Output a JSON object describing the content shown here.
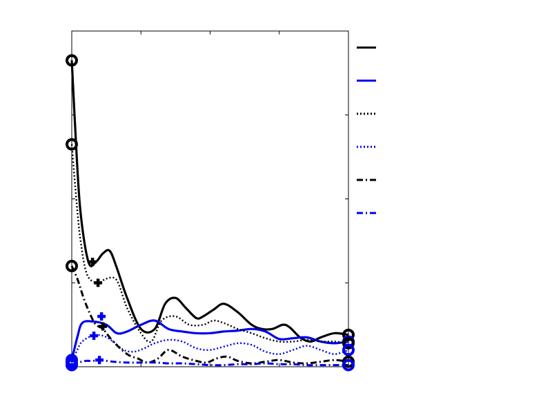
{
  "chart_data": {
    "type": "line",
    "title": "",
    "xlabel": "",
    "ylabel": "",
    "xlim": [
      0,
      40
    ],
    "ylim": [
      0,
      4
    ],
    "x_ticks": [
      0,
      10,
      20,
      30,
      40
    ],
    "y_ticks": [
      0,
      1,
      2,
      3,
      4
    ],
    "tick_labels_visible": false,
    "grid": false,
    "legend": {
      "placement": "outside-right",
      "labels_visible": false
    },
    "series": [
      {
        "color": "#000000",
        "style": "solid",
        "width": 3.2,
        "points": [
          [
            0,
            3.65
          ],
          [
            0.4,
            3.0
          ],
          [
            1.2,
            1.9
          ],
          [
            2.4,
            1.25
          ],
          [
            3.5,
            1.25
          ],
          [
            4.5,
            1.35
          ],
          [
            5.5,
            1.38
          ],
          [
            6.5,
            1.18
          ],
          [
            8,
            0.82
          ],
          [
            10,
            0.45
          ],
          [
            12,
            0.45
          ],
          [
            13.5,
            0.75
          ],
          [
            15,
            0.82
          ],
          [
            16.5,
            0.7
          ],
          [
            18,
            0.58
          ],
          [
            19,
            0.6
          ],
          [
            20.5,
            0.68
          ],
          [
            22,
            0.75
          ],
          [
            24,
            0.65
          ],
          [
            26,
            0.5
          ],
          [
            27.5,
            0.45
          ],
          [
            29,
            0.45
          ],
          [
            30.5,
            0.5
          ],
          [
            31.5,
            0.47
          ],
          [
            33,
            0.35
          ],
          [
            34.5,
            0.3
          ],
          [
            36,
            0.35
          ],
          [
            38,
            0.4
          ],
          [
            40,
            0.38
          ]
        ],
        "start_marker": "o",
        "end_marker": "o",
        "extra_markers": [
          {
            "x": 3,
            "y": 1.25,
            "m": "+"
          }
        ]
      },
      {
        "color": "#0000ee",
        "style": "solid",
        "width": 3.2,
        "points": [
          [
            0,
            0.08
          ],
          [
            0.8,
            0.35
          ],
          [
            1.5,
            0.52
          ],
          [
            3,
            0.54
          ],
          [
            5,
            0.5
          ],
          [
            6.5,
            0.4
          ],
          [
            8,
            0.42
          ],
          [
            10,
            0.5
          ],
          [
            12,
            0.55
          ],
          [
            14,
            0.45
          ],
          [
            16,
            0.42
          ],
          [
            18,
            0.4
          ],
          [
            20,
            0.4
          ],
          [
            22,
            0.42
          ],
          [
            24,
            0.43
          ],
          [
            26,
            0.45
          ],
          [
            28,
            0.42
          ],
          [
            30,
            0.33
          ],
          [
            32,
            0.34
          ],
          [
            34,
            0.35
          ],
          [
            36,
            0.3
          ],
          [
            38,
            0.28
          ],
          [
            40,
            0.3
          ]
        ],
        "start_marker": "o",
        "end_marker": "o",
        "extra_markers": [
          {
            "x": 4.3,
            "y": 0.6,
            "m": "+"
          }
        ]
      },
      {
        "color": "#000000",
        "style": "dotted",
        "width": 2.5,
        "points": [
          [
            0,
            2.65
          ],
          [
            0.5,
            2.15
          ],
          [
            1.2,
            1.55
          ],
          [
            2.2,
            1.1
          ],
          [
            3.8,
            1.0
          ],
          [
            5,
            1.05
          ],
          [
            6.5,
            1.03
          ],
          [
            8,
            0.7
          ],
          [
            10,
            0.4
          ],
          [
            11.5,
            0.3
          ],
          [
            13,
            0.55
          ],
          [
            15,
            0.6
          ],
          [
            17,
            0.5
          ],
          [
            19,
            0.5
          ],
          [
            20.5,
            0.55
          ],
          [
            22,
            0.52
          ],
          [
            24,
            0.45
          ],
          [
            26,
            0.4
          ],
          [
            28,
            0.34
          ],
          [
            30,
            0.3
          ],
          [
            32,
            0.3
          ],
          [
            34,
            0.32
          ],
          [
            36,
            0.3
          ],
          [
            38,
            0.3
          ],
          [
            40,
            0.28
          ]
        ],
        "start_marker": "o",
        "end_marker": "o",
        "extra_markers": [
          {
            "x": 3.8,
            "y": 1.0,
            "m": "+"
          }
        ]
      },
      {
        "color": "#0000ee",
        "style": "dotted",
        "width": 2.5,
        "points": [
          [
            0,
            0.05
          ],
          [
            0.8,
            0.2
          ],
          [
            1.5,
            0.3
          ],
          [
            3,
            0.37
          ],
          [
            4.5,
            0.37
          ],
          [
            6,
            0.3
          ],
          [
            7.5,
            0.2
          ],
          [
            9,
            0.18
          ],
          [
            10.5,
            0.22
          ],
          [
            12,
            0.28
          ],
          [
            14,
            0.32
          ],
          [
            16,
            0.3
          ],
          [
            18,
            0.22
          ],
          [
            20,
            0.2
          ],
          [
            22,
            0.24
          ],
          [
            24,
            0.28
          ],
          [
            26,
            0.26
          ],
          [
            28,
            0.18
          ],
          [
            30,
            0.15
          ],
          [
            32,
            0.2
          ],
          [
            34,
            0.25
          ],
          [
            36,
            0.2
          ],
          [
            38,
            0.15
          ],
          [
            40,
            0.2
          ]
        ],
        "start_marker": "o",
        "end_marker": "o",
        "extra_markers": [
          {
            "x": 3.2,
            "y": 0.37,
            "m": "+"
          }
        ]
      },
      {
        "color": "#000000",
        "style": "dashdot",
        "width": 3.0,
        "points": [
          [
            0,
            1.2
          ],
          [
            0.8,
            1.05
          ],
          [
            1.8,
            0.8
          ],
          [
            2.8,
            0.6
          ],
          [
            3.5,
            0.5
          ],
          [
            4.5,
            0.45
          ],
          [
            6,
            0.3
          ],
          [
            8,
            0.15
          ],
          [
            9.5,
            0.1
          ],
          [
            11,
            0.05
          ],
          [
            12.5,
            0.1
          ],
          [
            14,
            0.2
          ],
          [
            16,
            0.12
          ],
          [
            18,
            0.07
          ],
          [
            19.5,
            0.05
          ],
          [
            21,
            0.1
          ],
          [
            22.5,
            0.12
          ],
          [
            24,
            0.07
          ],
          [
            26,
            0.04
          ],
          [
            28,
            0.06
          ],
          [
            30,
            0.08
          ],
          [
            32,
            0.05
          ],
          [
            34,
            0.04
          ],
          [
            36,
            0.06
          ],
          [
            38,
            0.08
          ],
          [
            40,
            0.06
          ]
        ],
        "start_marker": "o",
        "end_marker": "o",
        "extra_markers": [
          {
            "x": 4.5,
            "y": 0.48,
            "m": "+"
          }
        ]
      },
      {
        "color": "#0000ee",
        "style": "dashdot",
        "width": 3.0,
        "points": [
          [
            0,
            0.02
          ],
          [
            1,
            0.05
          ],
          [
            2,
            0.07
          ],
          [
            3,
            0.07
          ],
          [
            4,
            0.08
          ],
          [
            6,
            0.06
          ],
          [
            8,
            0.05
          ],
          [
            10,
            0.05
          ],
          [
            12,
            0.05
          ],
          [
            14,
            0.04
          ],
          [
            16,
            0.04
          ],
          [
            18,
            0.03
          ],
          [
            20,
            0.02
          ],
          [
            22,
            0.02
          ],
          [
            24,
            0.03
          ],
          [
            26,
            0.03
          ],
          [
            28,
            0.04
          ],
          [
            30,
            0.03
          ],
          [
            32,
            0.03
          ],
          [
            34,
            0.02
          ],
          [
            36,
            0.02
          ],
          [
            38,
            0.02
          ],
          [
            40,
            0.02
          ]
        ],
        "start_marker": "o",
        "end_marker": "o",
        "extra_markers": [
          {
            "x": 4,
            "y": 0.08,
            "m": "+"
          }
        ]
      }
    ],
    "legend_entries": [
      {
        "color": "#000000",
        "style": "solid"
      },
      {
        "color": "#0000ee",
        "style": "solid"
      },
      {
        "color": "#000000",
        "style": "dotted"
      },
      {
        "color": "#0000ee",
        "style": "dotted"
      },
      {
        "color": "#000000",
        "style": "dashdot"
      },
      {
        "color": "#0000ee",
        "style": "dashdot"
      }
    ]
  }
}
